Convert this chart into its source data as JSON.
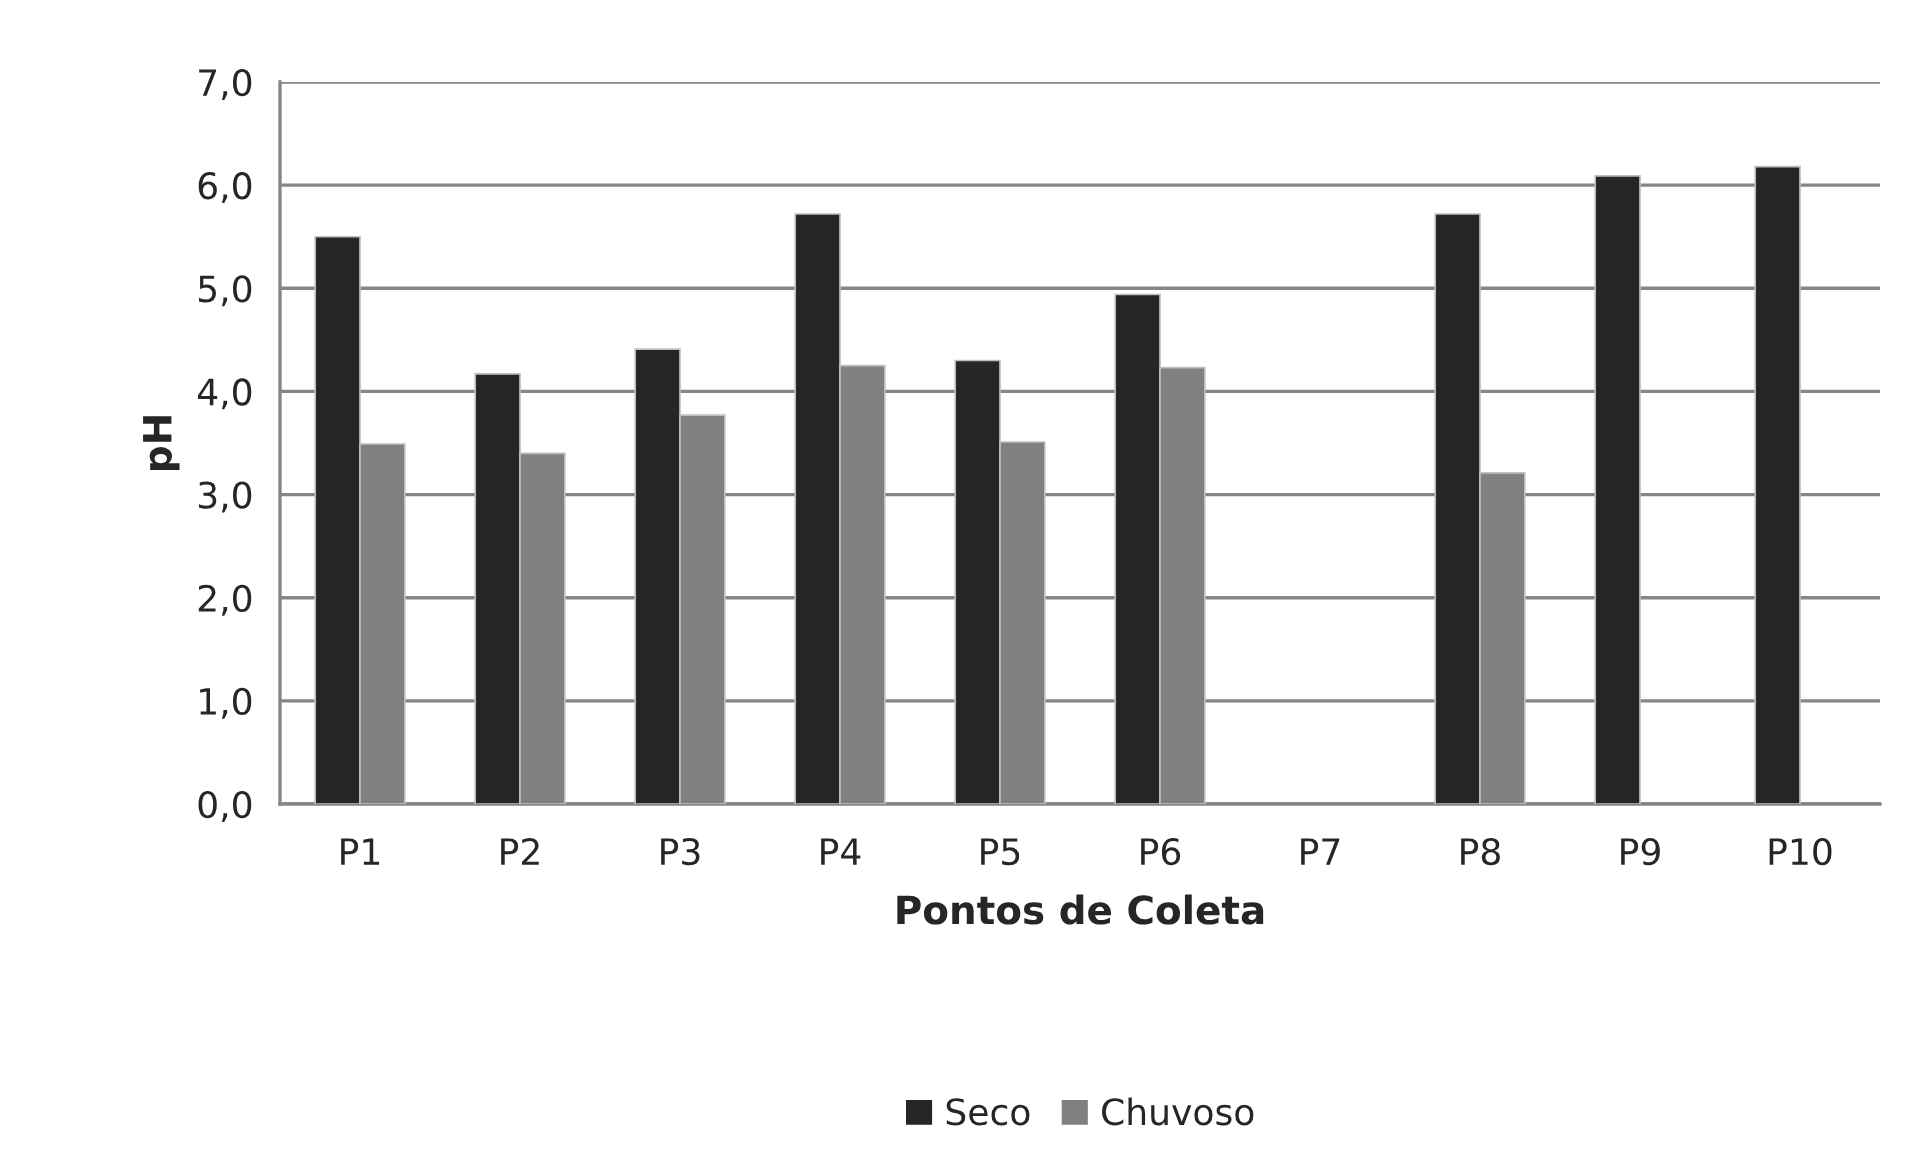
{
  "chart_data": {
    "type": "bar",
    "categories": [
      "P1",
      "P2",
      "P3",
      "P4",
      "P5",
      "P6",
      "P7",
      "P8",
      "P9",
      "P10"
    ],
    "series": [
      {
        "name": "Seco",
        "color": "#262626",
        "values": [
          5.5,
          4.17,
          4.41,
          5.72,
          4.3,
          4.94,
          null,
          5.72,
          6.09,
          6.18
        ]
      },
      {
        "name": "Chuvoso",
        "color": "#808080",
        "values": [
          3.49,
          3.4,
          3.77,
          4.25,
          3.51,
          4.23,
          null,
          3.21,
          null,
          null
        ]
      }
    ],
    "xlabel": "Pontos de Coleta",
    "ylabel": "pH",
    "ylim": [
      0,
      7
    ],
    "yticks": [
      {
        "value": 0,
        "label": "0,0"
      },
      {
        "value": 1,
        "label": "1,0"
      },
      {
        "value": 2,
        "label": "2,0"
      },
      {
        "value": 3,
        "label": "3,0"
      },
      {
        "value": 4,
        "label": "4,0"
      },
      {
        "value": 5,
        "label": "5,0"
      },
      {
        "value": 6,
        "label": "6,0"
      },
      {
        "value": 7,
        "label": "7,0"
      }
    ],
    "grid": "y",
    "legend": "bottom"
  }
}
